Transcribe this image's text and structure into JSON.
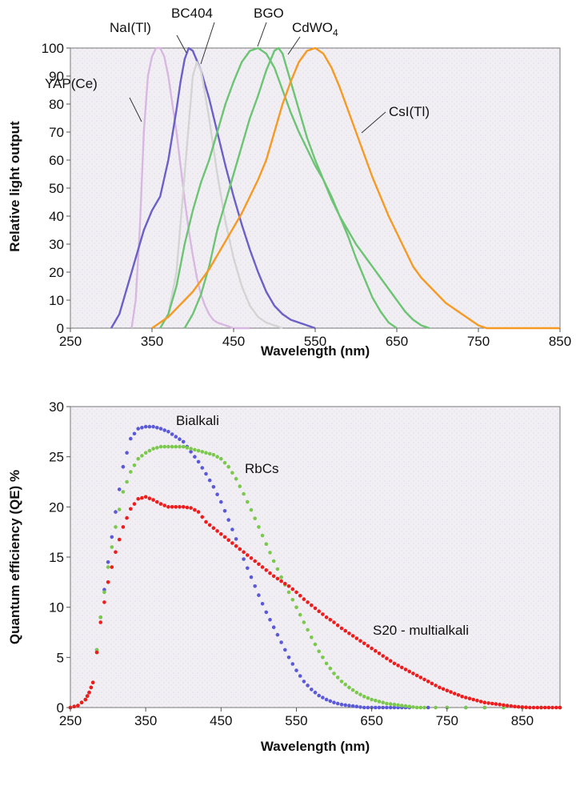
{
  "chart_data": [
    {
      "type": "line",
      "xlabel": "Wavelength (nm)",
      "ylabel": "Relative light output",
      "xlim": [
        250,
        850
      ],
      "ylim": [
        0,
        100
      ],
      "xticks": [
        250,
        350,
        450,
        550,
        650,
        750,
        850
      ],
      "yticks": [
        0,
        10,
        20,
        30,
        40,
        50,
        60,
        70,
        80,
        90,
        100
      ],
      "grid": false,
      "series": [
        {
          "name": "YAP(Ce)",
          "color": "#d8b8e0",
          "x": [
            325,
            330,
            335,
            340,
            345,
            350,
            355,
            360,
            365,
            370,
            375,
            380,
            385,
            390,
            395,
            400,
            405,
            410,
            415,
            420,
            425,
            430,
            440,
            450,
            460,
            470
          ],
          "y": [
            0,
            10,
            35,
            70,
            90,
            97,
            100,
            100,
            97,
            90,
            80,
            70,
            58,
            46,
            35,
            26,
            18,
            12,
            8,
            5,
            3,
            2,
            1,
            0,
            0,
            0
          ]
        },
        {
          "name": "NaI(Tl)",
          "color": "#6a60c8",
          "x": [
            300,
            310,
            320,
            330,
            340,
            350,
            360,
            370,
            380,
            385,
            390,
            395,
            400,
            410,
            420,
            430,
            440,
            450,
            460,
            470,
            480,
            490,
            500,
            510,
            520,
            530,
            540,
            550
          ],
          "y": [
            0,
            5,
            15,
            25,
            35,
            42,
            47,
            60,
            78,
            88,
            96,
            100,
            99,
            92,
            82,
            70,
            58,
            47,
            37,
            28,
            20,
            13,
            8,
            5,
            3,
            2,
            1,
            0
          ]
        },
        {
          "name": "BC404",
          "color": "#d4d4d4",
          "x": [
            360,
            370,
            380,
            390,
            400,
            405,
            410,
            420,
            430,
            440,
            450,
            460,
            470,
            480,
            490,
            500,
            510
          ],
          "y": [
            0,
            5,
            20,
            55,
            90,
            95,
            92,
            75,
            55,
            38,
            25,
            15,
            8,
            4,
            2,
            1,
            0
          ]
        },
        {
          "name": "BGO",
          "color": "#6cc474",
          "x": [
            360,
            370,
            380,
            390,
            400,
            410,
            420,
            430,
            440,
            450,
            460,
            470,
            480,
            490,
            500,
            510,
            520,
            530,
            540,
            550,
            560,
            570,
            580,
            590,
            600,
            610,
            620,
            630,
            640,
            650
          ],
          "y": [
            0,
            5,
            15,
            30,
            42,
            52,
            60,
            70,
            80,
            88,
            95,
            99,
            100,
            98,
            93,
            85,
            77,
            70,
            64,
            58,
            53,
            47,
            40,
            33,
            25,
            18,
            11,
            6,
            2,
            0
          ]
        },
        {
          "name": "CdWO4",
          "color": "#6cc474",
          "x": [
            390,
            400,
            410,
            420,
            430,
            440,
            450,
            460,
            470,
            480,
            490,
            500,
            505,
            510,
            520,
            530,
            540,
            550,
            560,
            570,
            580,
            590,
            600,
            610,
            620,
            630,
            640,
            650,
            660,
            670,
            680,
            690
          ],
          "y": [
            0,
            5,
            12,
            22,
            35,
            45,
            55,
            65,
            75,
            83,
            92,
            99,
            100,
            98,
            88,
            78,
            68,
            60,
            53,
            46,
            40,
            35,
            30,
            26,
            22,
            18,
            14,
            10,
            6,
            3,
            1,
            0
          ]
        },
        {
          "name": "CsI(Tl)",
          "color": "#f59a24",
          "x": [
            350,
            360,
            370,
            380,
            390,
            400,
            410,
            420,
            430,
            440,
            450,
            460,
            470,
            480,
            490,
            500,
            510,
            520,
            530,
            540,
            550,
            560,
            570,
            580,
            590,
            600,
            610,
            620,
            630,
            640,
            650,
            660,
            670,
            680,
            690,
            700,
            710,
            720,
            730,
            740,
            750,
            760,
            770,
            800,
            850
          ],
          "y": [
            0,
            2,
            4,
            7,
            10,
            13,
            17,
            21,
            26,
            31,
            36,
            41,
            47,
            53,
            60,
            70,
            80,
            88,
            95,
            99,
            100,
            98,
            93,
            86,
            78,
            70,
            62,
            54,
            47,
            40,
            34,
            28,
            22,
            18,
            15,
            12,
            9,
            7,
            5,
            3,
            1,
            0,
            0,
            0,
            0
          ]
        }
      ]
    },
    {
      "type": "scatter",
      "xlabel": "Wavelength (nm)",
      "ylabel": "Quantum efficiency (QE) %",
      "xlim": [
        250,
        900
      ],
      "ylim": [
        0,
        30
      ],
      "xticks": [
        250,
        350,
        450,
        550,
        650,
        750,
        850
      ],
      "yticks": [
        0,
        5,
        10,
        15,
        20,
        25,
        30
      ],
      "grid": false,
      "series": [
        {
          "name": "Bialkali",
          "color": "#5a5ad8",
          "x": [
            250,
            260,
            270,
            275,
            280,
            290,
            300,
            310,
            320,
            330,
            340,
            350,
            360,
            370,
            380,
            390,
            400,
            410,
            420,
            430,
            440,
            450,
            460,
            470,
            480,
            490,
            500,
            510,
            520,
            530,
            540,
            550,
            560,
            570,
            580,
            590,
            600,
            610,
            620,
            630,
            640,
            650,
            660,
            670,
            680,
            690,
            700,
            750,
            800,
            850,
            900
          ],
          "y": [
            0,
            0.2,
            0.8,
            1.5,
            2.5,
            9,
            14.5,
            19.5,
            24,
            26.8,
            27.8,
            28,
            28,
            27.8,
            27.5,
            27,
            26.5,
            25.5,
            24.5,
            23.3,
            22,
            20.5,
            18.7,
            16.8,
            14.8,
            13,
            11.2,
            9.5,
            8,
            6.5,
            5,
            3.7,
            2.6,
            1.8,
            1.2,
            0.8,
            0.5,
            0.3,
            0.2,
            0.1,
            0,
            0,
            0,
            0,
            0,
            0,
            0,
            0,
            0,
            0,
            0
          ]
        },
        {
          "name": "RbCs",
          "color": "#7ac84c",
          "x": [
            250,
            260,
            270,
            275,
            280,
            290,
            300,
            310,
            320,
            330,
            340,
            350,
            360,
            370,
            380,
            390,
            400,
            410,
            420,
            430,
            440,
            450,
            460,
            470,
            480,
            490,
            500,
            510,
            520,
            530,
            540,
            550,
            560,
            570,
            580,
            590,
            600,
            610,
            620,
            630,
            640,
            650,
            660,
            670,
            680,
            690,
            700,
            710,
            720,
            750,
            800,
            850,
            900
          ],
          "y": [
            0,
            0.2,
            0.8,
            1.5,
            2.5,
            9,
            14,
            18,
            21.5,
            23.5,
            24.8,
            25.4,
            25.8,
            26,
            26,
            26,
            26,
            25.8,
            25.6,
            25.4,
            25.2,
            24.8,
            24,
            22.8,
            21.3,
            19.7,
            18,
            16.3,
            14.6,
            13,
            11.5,
            10,
            8.5,
            7,
            5.6,
            4.4,
            3.4,
            2.6,
            2,
            1.5,
            1.1,
            0.8,
            0.6,
            0.4,
            0.3,
            0.2,
            0.1,
            0,
            0,
            0,
            0,
            0,
            0
          ]
        },
        {
          "name": "S20 - multialkali",
          "color": "#ee1c1c",
          "x": [
            250,
            260,
            270,
            275,
            280,
            290,
            300,
            310,
            320,
            330,
            340,
            350,
            360,
            370,
            380,
            390,
            400,
            410,
            420,
            430,
            440,
            450,
            460,
            470,
            480,
            490,
            500,
            510,
            520,
            530,
            540,
            550,
            560,
            570,
            580,
            590,
            600,
            610,
            620,
            630,
            640,
            650,
            660,
            670,
            680,
            690,
            700,
            710,
            720,
            730,
            740,
            750,
            760,
            770,
            780,
            790,
            800,
            810,
            820,
            830,
            840,
            850,
            860,
            870,
            880,
            890,
            900
          ],
          "y": [
            0,
            0.2,
            0.8,
            1.5,
            2.5,
            8.5,
            12.5,
            15.5,
            18,
            19.8,
            20.8,
            21,
            20.7,
            20.3,
            20,
            20,
            20,
            19.9,
            19.5,
            18.5,
            17.9,
            17.3,
            16.7,
            16.1,
            15.5,
            14.9,
            14.3,
            13.7,
            13.1,
            12.6,
            12.1,
            11.5,
            10.8,
            10.2,
            9.6,
            9,
            8.5,
            7.9,
            7.4,
            6.9,
            6.4,
            5.9,
            5.4,
            4.9,
            4.4,
            4,
            3.6,
            3.2,
            2.8,
            2.4,
            2,
            1.7,
            1.4,
            1.1,
            0.9,
            0.7,
            0.5,
            0.4,
            0.3,
            0.2,
            0.1,
            0.05,
            0,
            0,
            0,
            0,
            0
          ]
        }
      ]
    }
  ],
  "labels": {
    "top": {
      "naitl": "NaI(Tl)",
      "bc404": "BC404",
      "bgo": "BGO",
      "cdwo4_main": "CdWO",
      "cdwo4_sub": "4",
      "yapce": "YAP(Ce)",
      "csitl": "CsI(Tl)"
    },
    "bottom": {
      "bialkali": "Bialkali",
      "rbcs": "RbCs",
      "s20": "S20 - multialkali"
    }
  }
}
